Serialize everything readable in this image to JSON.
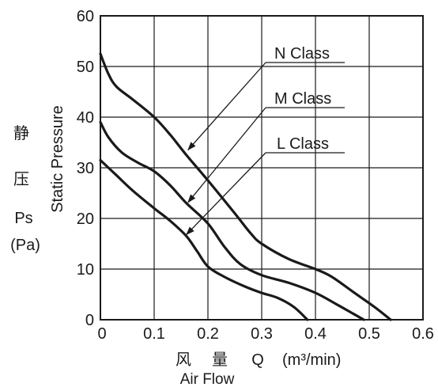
{
  "chart_data": {
    "type": "line",
    "title": "",
    "xlabel": [
      "风",
      "量",
      "Q",
      "(m³/min)"
    ],
    "xlabel_en": "Air Flow",
    "ylabel": "Static Pressure",
    "ylabel_side": [
      "静",
      "压",
      "Ps",
      "(Pa)"
    ],
    "xlim": [
      0,
      0.6
    ],
    "ylim": [
      0,
      60
    ],
    "xticks": [
      0,
      0.1,
      0.2,
      0.3,
      0.4,
      0.5,
      0.6
    ],
    "xtick_labels": [
      "0",
      "0.1",
      "0.2",
      "0.3",
      "0.4",
      "0.5",
      "0.6"
    ],
    "yticks": [
      0,
      10,
      20,
      30,
      40,
      50,
      60
    ],
    "ytick_labels": [
      "0",
      "10",
      "20",
      "30",
      "40",
      "50",
      "60"
    ],
    "grid": true,
    "legend": "top-right",
    "series": [
      {
        "name": "N Class",
        "x": [
          0,
          0.015,
          0.03,
          0.06,
          0.1,
          0.13,
          0.16,
          0.2,
          0.25,
          0.28,
          0.3,
          0.35,
          0.4,
          0.43,
          0.47,
          0.51,
          0.54
        ],
        "y": [
          52.5,
          48.5,
          46,
          43.5,
          40,
          36.5,
          32.5,
          27.5,
          21,
          17,
          15,
          12,
          10,
          8.5,
          5.5,
          2.5,
          0
        ]
      },
      {
        "name": "M Class",
        "x": [
          0,
          0.015,
          0.04,
          0.07,
          0.1,
          0.13,
          0.16,
          0.2,
          0.23,
          0.26,
          0.3,
          0.35,
          0.4,
          0.44,
          0.47,
          0.49
        ],
        "y": [
          39,
          36,
          33,
          31,
          29.3,
          26.5,
          23,
          19,
          14.5,
          11,
          8.8,
          7.3,
          5.3,
          3,
          1.2,
          0
        ]
      },
      {
        "name": "L Class",
        "x": [
          0,
          0.03,
          0.06,
          0.1,
          0.13,
          0.16,
          0.18,
          0.2,
          0.23,
          0.27,
          0.3,
          0.33,
          0.36,
          0.385
        ],
        "y": [
          31.5,
          28.5,
          25.5,
          22,
          19.5,
          16.5,
          13.5,
          10.5,
          8.5,
          6.5,
          5.3,
          4.3,
          2.5,
          0
        ]
      }
    ],
    "colors": {
      "line": "#1a1a1a",
      "grid": "#1a1a1a",
      "background": "#ffffff"
    }
  }
}
